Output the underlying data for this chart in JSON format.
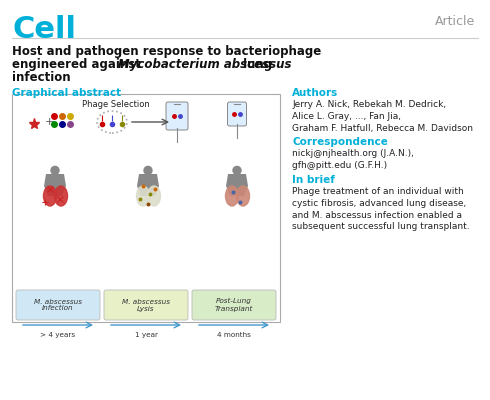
{
  "bg_color": "#ffffff",
  "cell_color": "#00b0d8",
  "cell_text": "Cell",
  "article_text": "Article",
  "article_color": "#999999",
  "graphical_abstract_label": "Graphical abstract",
  "section_color": "#00b0d8",
  "authors_label": "Authors",
  "authors_text": "Jerry A. Nick, Rebekah M. Dedrick,\nAlice L. Gray, ..., Fan Jia,\nGraham F. Hatfull, Rebecca M. Davidson",
  "correspondence_label": "Correspondence",
  "correspondence_text": "nickj@njhealth.org (J.A.N.),\ngfh@pitt.edu (G.F.H.)",
  "inbrief_label": "In brief",
  "inbrief_text": "Phage treatment of an individual with\ncystic fibrosis, advanced lung disease,\nand M. abscessus infection enabled a\nsubsequent successful lung transplant.",
  "phage_selection_text": "Phage Selection",
  "box1_label": "M. abscessus\nInfection",
  "box2_label": "M. abscessus\nLysis",
  "box3_label": "Post-Lung\nTransplant",
  "time1": "> 4 years",
  "time2": "1 year",
  "time3": "4 months",
  "box1_color": "#d0e8f5",
  "box2_color": "#e8f0c8",
  "box3_color": "#d8ecc8",
  "timeline_color": "#4499cc",
  "torso_color": "#888888",
  "lung1_color": "#cc3333",
  "lung2_color": "#ddddcc",
  "lung3_color": "#cc8877",
  "phage_colors": [
    "#cc0000",
    "#cc6600",
    "#ccaa00",
    "#008800",
    "#000088",
    "#884488"
  ]
}
